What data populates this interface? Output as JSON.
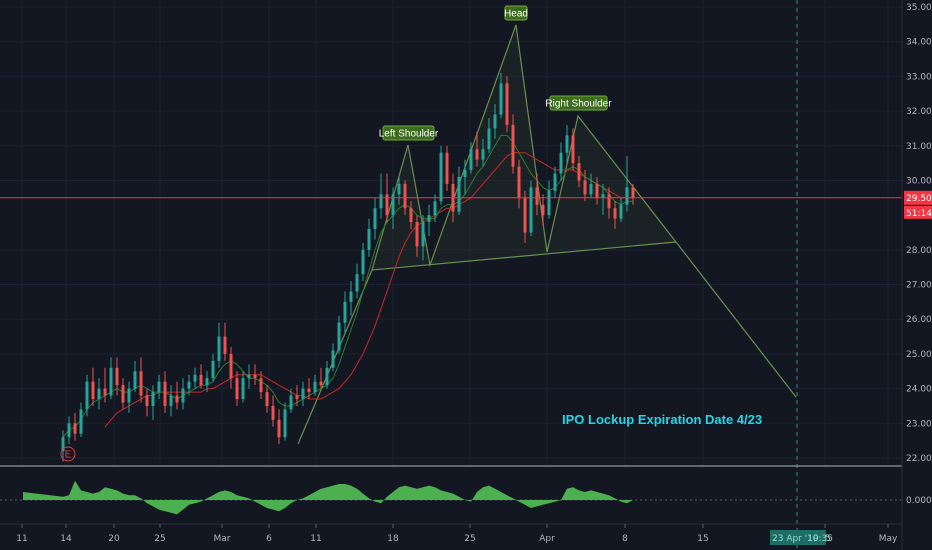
{
  "chart_data": {
    "type": "candlestick",
    "colors": {
      "background": "#131722",
      "up": "#26a69a",
      "down": "#ef5350",
      "ma_fast": "#2e7d32",
      "ma_slow": "#c62828",
      "pattern": "#6b8f4e",
      "price_line": "#f23645",
      "oscillator": "#4caf50",
      "note": "#2ad4e6"
    },
    "price_axis": {
      "ylim": [
        21.8,
        35.2
      ],
      "ticks": [
        "35.00",
        "34.00",
        "33.00",
        "32.00",
        "31.00",
        "30.00",
        "28.00",
        "27.00",
        "26.00",
        "25.00",
        "24.00",
        "23.00",
        "22.00"
      ],
      "current_price_label": "29.50",
      "countdown_label": "51:14"
    },
    "oscillator_axis": {
      "tick": "0.0000"
    },
    "time_axis": {
      "ticks": [
        "11",
        "14",
        "20",
        "25",
        "Mar",
        "6",
        "11",
        "18",
        "25",
        "Apr",
        "8",
        "15",
        "25",
        "May"
      ],
      "crosshair_date_label": "23 Apr '19",
      "crosshair_time_label": "10:35"
    },
    "annotations": {
      "left_shoulder": "Left Shoulder",
      "head": "Head",
      "right_shoulder": "Right Shoulder",
      "earnings_marker": "E",
      "note": "IPO Lockup Expiration Date 4/23"
    },
    "candles": [
      {
        "o": 22.2,
        "h": 22.8,
        "l": 21.9,
        "c": 22.6
      },
      {
        "o": 22.6,
        "h": 23.2,
        "l": 22.4,
        "c": 23.0
      },
      {
        "o": 23.0,
        "h": 23.3,
        "l": 22.5,
        "c": 22.7
      },
      {
        "o": 22.7,
        "h": 23.6,
        "l": 22.6,
        "c": 23.4
      },
      {
        "o": 23.4,
        "h": 24.4,
        "l": 23.2,
        "c": 24.2
      },
      {
        "o": 24.2,
        "h": 24.6,
        "l": 23.5,
        "c": 23.7
      },
      {
        "o": 23.7,
        "h": 24.3,
        "l": 23.4,
        "c": 24.0
      },
      {
        "o": 24.0,
        "h": 24.6,
        "l": 23.6,
        "c": 23.8
      },
      {
        "o": 23.8,
        "h": 24.9,
        "l": 23.7,
        "c": 24.6
      },
      {
        "o": 24.6,
        "h": 24.9,
        "l": 23.8,
        "c": 24.1
      },
      {
        "o": 24.1,
        "h": 24.3,
        "l": 23.4,
        "c": 23.6
      },
      {
        "o": 23.6,
        "h": 24.2,
        "l": 23.3,
        "c": 24.0
      },
      {
        "o": 24.0,
        "h": 24.8,
        "l": 23.9,
        "c": 24.5
      },
      {
        "o": 24.5,
        "h": 24.9,
        "l": 23.6,
        "c": 23.8
      },
      {
        "o": 23.8,
        "h": 24.0,
        "l": 23.2,
        "c": 23.5
      },
      {
        "o": 23.5,
        "h": 24.1,
        "l": 23.1,
        "c": 23.9
      },
      {
        "o": 23.9,
        "h": 24.4,
        "l": 23.7,
        "c": 24.2
      },
      {
        "o": 24.2,
        "h": 24.5,
        "l": 23.3,
        "c": 23.5
      },
      {
        "o": 23.5,
        "h": 24.1,
        "l": 23.2,
        "c": 23.8
      },
      {
        "o": 23.8,
        "h": 24.2,
        "l": 23.4,
        "c": 23.6
      },
      {
        "o": 23.6,
        "h": 24.3,
        "l": 23.4,
        "c": 24.0
      },
      {
        "o": 24.0,
        "h": 24.4,
        "l": 23.8,
        "c": 24.2
      },
      {
        "o": 24.2,
        "h": 24.6,
        "l": 24.0,
        "c": 24.4
      },
      {
        "o": 24.4,
        "h": 24.7,
        "l": 24.0,
        "c": 24.1
      },
      {
        "o": 24.1,
        "h": 24.5,
        "l": 23.9,
        "c": 24.3
      },
      {
        "o": 24.3,
        "h": 25.0,
        "l": 24.2,
        "c": 24.8
      },
      {
        "o": 24.8,
        "h": 25.9,
        "l": 24.6,
        "c": 25.5
      },
      {
        "o": 25.5,
        "h": 25.9,
        "l": 24.8,
        "c": 25.0
      },
      {
        "o": 25.0,
        "h": 25.2,
        "l": 24.0,
        "c": 24.3
      },
      {
        "o": 24.3,
        "h": 24.5,
        "l": 23.5,
        "c": 23.7
      },
      {
        "o": 23.7,
        "h": 24.5,
        "l": 23.6,
        "c": 24.3
      },
      {
        "o": 24.3,
        "h": 24.7,
        "l": 24.0,
        "c": 24.4
      },
      {
        "o": 24.4,
        "h": 24.7,
        "l": 24.1,
        "c": 24.3
      },
      {
        "o": 24.3,
        "h": 24.5,
        "l": 23.7,
        "c": 23.9
      },
      {
        "o": 23.9,
        "h": 24.1,
        "l": 23.3,
        "c": 23.5
      },
      {
        "o": 23.5,
        "h": 23.8,
        "l": 22.9,
        "c": 23.1
      },
      {
        "o": 23.1,
        "h": 23.4,
        "l": 22.4,
        "c": 22.6
      },
      {
        "o": 22.6,
        "h": 23.6,
        "l": 22.5,
        "c": 23.4
      },
      {
        "o": 23.4,
        "h": 24.0,
        "l": 23.3,
        "c": 23.8
      },
      {
        "o": 23.8,
        "h": 24.1,
        "l": 23.5,
        "c": 23.7
      },
      {
        "o": 23.7,
        "h": 24.2,
        "l": 23.5,
        "c": 24.0
      },
      {
        "o": 24.0,
        "h": 24.3,
        "l": 23.7,
        "c": 23.9
      },
      {
        "o": 23.9,
        "h": 24.4,
        "l": 23.8,
        "c": 24.2
      },
      {
        "o": 24.2,
        "h": 24.6,
        "l": 24.0,
        "c": 24.1
      },
      {
        "o": 24.1,
        "h": 24.8,
        "l": 24.0,
        "c": 24.6
      },
      {
        "o": 24.6,
        "h": 25.3,
        "l": 24.5,
        "c": 25.1
      },
      {
        "o": 25.1,
        "h": 26.1,
        "l": 25.0,
        "c": 25.9
      },
      {
        "o": 25.9,
        "h": 26.8,
        "l": 25.6,
        "c": 26.5
      },
      {
        "o": 26.5,
        "h": 27.1,
        "l": 26.1,
        "c": 26.8
      },
      {
        "o": 26.8,
        "h": 27.6,
        "l": 26.6,
        "c": 27.3
      },
      {
        "o": 27.3,
        "h": 28.2,
        "l": 27.1,
        "c": 28.0
      },
      {
        "o": 28.0,
        "h": 28.9,
        "l": 27.8,
        "c": 28.6
      },
      {
        "o": 28.6,
        "h": 29.5,
        "l": 28.3,
        "c": 29.2
      },
      {
        "o": 29.2,
        "h": 30.2,
        "l": 28.9,
        "c": 29.6
      },
      {
        "o": 29.6,
        "h": 30.2,
        "l": 28.8,
        "c": 29.0
      },
      {
        "o": 29.0,
        "h": 29.8,
        "l": 28.6,
        "c": 29.6
      },
      {
        "o": 29.6,
        "h": 30.1,
        "l": 29.3,
        "c": 29.9
      },
      {
        "o": 29.9,
        "h": 30.0,
        "l": 29.0,
        "c": 29.2
      },
      {
        "o": 29.2,
        "h": 29.4,
        "l": 28.6,
        "c": 28.8
      },
      {
        "o": 28.8,
        "h": 29.0,
        "l": 27.8,
        "c": 28.1
      },
      {
        "o": 28.1,
        "h": 29.0,
        "l": 27.7,
        "c": 28.8
      },
      {
        "o": 28.8,
        "h": 29.3,
        "l": 28.4,
        "c": 29.0
      },
      {
        "o": 29.0,
        "h": 29.6,
        "l": 28.8,
        "c": 29.4
      },
      {
        "o": 29.4,
        "h": 31.0,
        "l": 29.3,
        "c": 30.8
      },
      {
        "o": 30.8,
        "h": 31.0,
        "l": 29.7,
        "c": 29.9
      },
      {
        "o": 29.9,
        "h": 30.2,
        "l": 28.8,
        "c": 29.1
      },
      {
        "o": 29.1,
        "h": 30.4,
        "l": 29.0,
        "c": 30.1
      },
      {
        "o": 30.1,
        "h": 30.6,
        "l": 29.6,
        "c": 30.3
      },
      {
        "o": 30.3,
        "h": 31.1,
        "l": 30.2,
        "c": 30.9
      },
      {
        "o": 30.9,
        "h": 31.4,
        "l": 30.4,
        "c": 30.6
      },
      {
        "o": 30.6,
        "h": 31.2,
        "l": 30.4,
        "c": 30.9
      },
      {
        "o": 30.9,
        "h": 31.8,
        "l": 30.8,
        "c": 31.5
      },
      {
        "o": 31.5,
        "h": 32.2,
        "l": 31.2,
        "c": 31.9
      },
      {
        "o": 31.9,
        "h": 33.1,
        "l": 31.8,
        "c": 32.8
      },
      {
        "o": 32.8,
        "h": 33.0,
        "l": 31.4,
        "c": 31.6
      },
      {
        "o": 31.6,
        "h": 31.9,
        "l": 30.2,
        "c": 30.4
      },
      {
        "o": 30.4,
        "h": 30.6,
        "l": 29.2,
        "c": 29.5
      },
      {
        "o": 29.5,
        "h": 29.7,
        "l": 28.2,
        "c": 28.5
      },
      {
        "o": 28.5,
        "h": 30.0,
        "l": 28.4,
        "c": 29.8
      },
      {
        "o": 29.8,
        "h": 30.2,
        "l": 29.0,
        "c": 29.3
      },
      {
        "o": 29.3,
        "h": 29.6,
        "l": 28.7,
        "c": 29.0
      },
      {
        "o": 29.0,
        "h": 30.0,
        "l": 28.9,
        "c": 29.7
      },
      {
        "o": 29.7,
        "h": 30.4,
        "l": 29.5,
        "c": 30.2
      },
      {
        "o": 30.2,
        "h": 31.1,
        "l": 30.0,
        "c": 30.8
      },
      {
        "o": 30.8,
        "h": 31.6,
        "l": 30.5,
        "c": 31.3
      },
      {
        "o": 31.3,
        "h": 31.5,
        "l": 30.3,
        "c": 30.5
      },
      {
        "o": 30.5,
        "h": 30.7,
        "l": 29.8,
        "c": 30.0
      },
      {
        "o": 30.0,
        "h": 30.3,
        "l": 29.4,
        "c": 29.6
      },
      {
        "o": 29.6,
        "h": 30.2,
        "l": 29.5,
        "c": 29.9
      },
      {
        "o": 29.9,
        "h": 30.1,
        "l": 29.3,
        "c": 29.5
      },
      {
        "o": 29.5,
        "h": 29.9,
        "l": 29.0,
        "c": 29.6
      },
      {
        "o": 29.6,
        "h": 29.8,
        "l": 28.9,
        "c": 29.2
      },
      {
        "o": 29.2,
        "h": 29.4,
        "l": 28.6,
        "c": 28.9
      },
      {
        "o": 28.9,
        "h": 29.5,
        "l": 28.8,
        "c": 29.3
      },
      {
        "o": 29.3,
        "h": 30.7,
        "l": 29.1,
        "c": 29.8
      },
      {
        "o": 29.8,
        "h": 29.9,
        "l": 29.3,
        "c": 29.5
      }
    ],
    "ma_fast": [
      22.6,
      22.8,
      22.9,
      23.1,
      23.4,
      23.6,
      23.7,
      23.8,
      23.9,
      24.0,
      23.9,
      23.9,
      24.0,
      24.1,
      24.0,
      23.9,
      23.9,
      23.9,
      23.8,
      23.7,
      23.8,
      23.9,
      24.0,
      24.1,
      24.1,
      24.2,
      24.5,
      24.7,
      24.8,
      24.7,
      24.5,
      24.3,
      24.3,
      24.2,
      24.1,
      23.9,
      23.6,
      23.5,
      23.5,
      23.6,
      23.7,
      23.8,
      23.9,
      24.0,
      24.1,
      24.3,
      24.7,
      25.2,
      25.7,
      26.2,
      26.8,
      27.4,
      28.0,
      28.5,
      28.8,
      29.0,
      29.2,
      29.3,
      29.2,
      29.0,
      28.9,
      28.9,
      28.9,
      29.2,
      29.3,
      29.3,
      29.4,
      29.6,
      29.9,
      30.2,
      30.4,
      30.7,
      31.0,
      31.3,
      31.3,
      31.1,
      30.8,
      30.5,
      30.2,
      30.0,
      29.8,
      29.7,
      29.8,
      30.0,
      30.3,
      30.4,
      30.3,
      30.1,
      30.0,
      29.9,
      29.8,
      29.6,
      29.4,
      29.3,
      29.4,
      29.4
    ],
    "ma_slow": [
      null,
      null,
      null,
      null,
      null,
      null,
      null,
      22.9,
      23.1,
      23.3,
      23.4,
      23.5,
      23.6,
      23.7,
      23.8,
      23.8,
      23.9,
      23.9,
      23.9,
      23.9,
      23.9,
      23.9,
      23.9,
      23.9,
      24.0,
      24.0,
      24.1,
      24.2,
      24.3,
      24.4,
      24.4,
      24.4,
      24.4,
      24.4,
      24.3,
      24.2,
      24.1,
      24.0,
      23.9,
      23.8,
      23.8,
      23.7,
      23.7,
      23.7,
      23.8,
      23.9,
      24.0,
      24.2,
      24.4,
      24.7,
      25.0,
      25.4,
      25.8,
      26.3,
      26.8,
      27.3,
      27.8,
      28.2,
      28.5,
      28.7,
      28.8,
      28.9,
      29.0,
      29.1,
      29.2,
      29.2,
      29.3,
      29.4,
      29.5,
      29.7,
      29.9,
      30.1,
      30.3,
      30.5,
      30.7,
      30.8,
      30.8,
      30.8,
      30.7,
      30.6,
      30.5,
      30.4,
      30.3,
      30.3,
      30.3,
      30.3,
      30.2,
      30.1,
      30.0,
      29.9,
      29.8,
      29.7,
      29.6,
      29.5,
      29.5,
      29.5
    ],
    "oscillator": [
      0.2,
      0.3,
      1.2,
      0.6,
      0.5,
      0.4,
      0.5,
      0.8,
      0.7,
      0.6,
      0.4,
      0.3,
      0.3,
      0.1,
      -0.2,
      -0.4,
      -0.6,
      -0.7,
      -0.8,
      -0.9,
      -0.6,
      -0.3,
      -0.2,
      -0.1,
      0.1,
      0.3,
      0.5,
      0.6,
      0.5,
      0.3,
      0.2,
      0.1,
      -0.1,
      -0.3,
      -0.5,
      -0.6,
      -0.7,
      -0.5,
      -0.2,
      0.0,
      0.1,
      0.3,
      0.5,
      0.7,
      0.8,
      0.9,
      1.0,
      1.0,
      0.9,
      0.7,
      0.4,
      0.1,
      -0.1,
      -0.2,
      0.2,
      0.5,
      0.8,
      0.9,
      0.8,
      0.7,
      0.8,
      0.9,
      0.8,
      0.6,
      0.5,
      0.4,
      0.2,
      0.0,
      -0.1,
      0.5,
      0.8,
      0.9,
      0.7,
      0.5,
      0.3,
      0.1,
      -0.1,
      -0.3,
      -0.5,
      -0.4,
      -0.3,
      -0.2,
      -0.1,
      0.0,
      0.7,
      0.8,
      0.6,
      0.5,
      0.6,
      0.5,
      0.4,
      0.3,
      0.1,
      -0.1,
      -0.2,
      0.0
    ]
  }
}
